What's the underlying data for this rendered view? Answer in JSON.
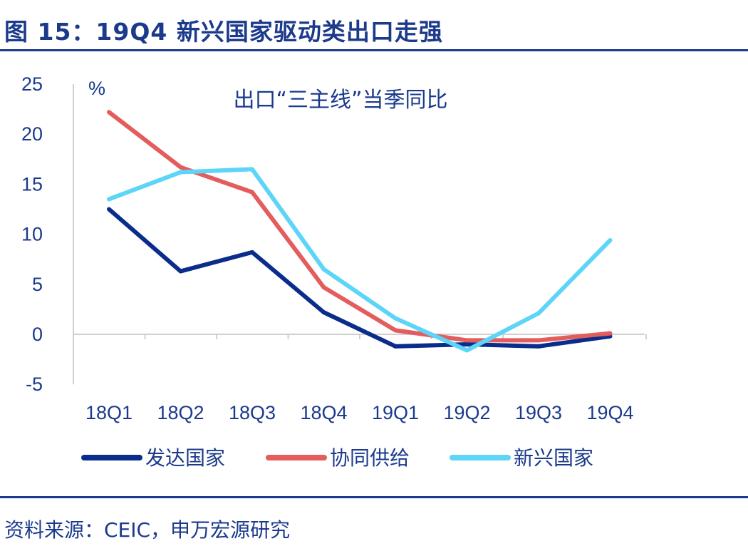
{
  "header": {
    "title": "图 15：19Q4  新兴国家驱动类出口走强"
  },
  "footer": {
    "source": "资料来源：CEIC，申万宏源研究"
  },
  "chart_data": {
    "type": "line",
    "title": "出口“三主线”当季同比",
    "ylabel": "%",
    "xlabel": "",
    "categories": [
      "18Q1",
      "18Q2",
      "18Q3",
      "18Q4",
      "19Q1",
      "19Q2",
      "19Q3",
      "19Q4"
    ],
    "ylim": [
      -5,
      25
    ],
    "yticks": [
      -5,
      0,
      5,
      10,
      15,
      20,
      25
    ],
    "grid": false,
    "legend_position": "bottom",
    "series": [
      {
        "name": "发达国家",
        "color": "#0a2d8c",
        "values": [
          12.5,
          6.3,
          8.2,
          2.2,
          -1.2,
          -1.0,
          -1.2,
          -0.2
        ]
      },
      {
        "name": "协同供给",
        "color": "#e35d5d",
        "values": [
          22.2,
          16.7,
          14.2,
          4.7,
          0.4,
          -0.6,
          -0.6,
          0.1
        ]
      },
      {
        "name": "新兴国家",
        "color": "#5dd5f8",
        "values": [
          13.5,
          16.2,
          16.5,
          6.5,
          1.6,
          -1.6,
          2.1,
          9.4
        ]
      }
    ]
  }
}
